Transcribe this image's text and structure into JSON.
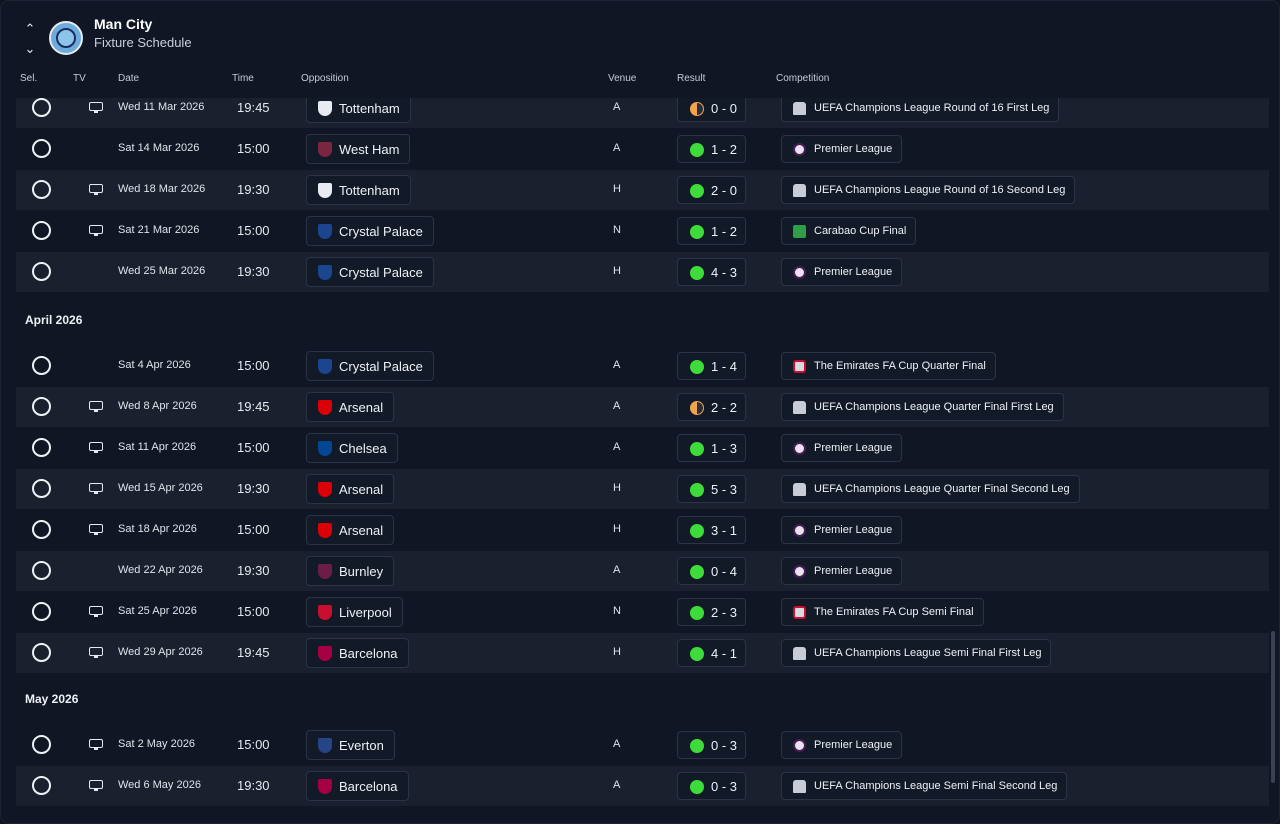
{
  "header": {
    "club": "Man City",
    "subtitle": "Fixture Schedule"
  },
  "columns": {
    "sel": "Sel.",
    "tv": "TV",
    "date": "Date",
    "time": "Time",
    "opposition": "Opposition",
    "venue": "Venue",
    "result": "Result",
    "competition": "Competition"
  },
  "months": [
    {
      "label": "April 2026"
    },
    {
      "label": "May 2026"
    }
  ],
  "colors": {
    "win": "#3ddc3a",
    "draw": "#f3a24e",
    "background": "#101623",
    "row_alt": "#1a202d"
  },
  "fixtures": [
    {
      "date": "Wed 11 Mar 2026",
      "time": "19:45",
      "opp": "Tottenham",
      "venue": "A",
      "score": "0 - 0",
      "result": "draw",
      "comp": "UEFA Champions League Round of 16  First Leg",
      "tv": true
    },
    {
      "date": "Sat 14 Mar 2026",
      "time": "15:00",
      "opp": "West Ham",
      "venue": "A",
      "score": "1 - 2",
      "result": "win",
      "comp": "Premier League",
      "tv": false
    },
    {
      "date": "Wed 18 Mar 2026",
      "time": "19:30",
      "opp": "Tottenham",
      "venue": "H",
      "score": "2 - 0",
      "result": "win",
      "comp": "UEFA Champions League Round of 16  Second Leg",
      "tv": true
    },
    {
      "date": "Sat 21 Mar 2026",
      "time": "15:00",
      "opp": "Crystal Palace",
      "venue": "N",
      "score": "1 - 2",
      "result": "win",
      "comp": "Carabao Cup Final",
      "tv": true
    },
    {
      "date": "Wed 25 Mar 2026",
      "time": "19:30",
      "opp": "Crystal Palace",
      "venue": "H",
      "score": "4 - 3",
      "result": "win",
      "comp": "Premier League",
      "tv": false
    },
    {
      "date": "Sat 4 Apr 2026",
      "time": "15:00",
      "opp": "Crystal Palace",
      "venue": "A",
      "score": "1 - 4",
      "result": "win",
      "comp": "The Emirates FA Cup Quarter Final",
      "tv": false
    },
    {
      "date": "Wed 8 Apr 2026",
      "time": "19:45",
      "opp": "Arsenal",
      "venue": "A",
      "score": "2 - 2",
      "result": "draw",
      "comp": "UEFA Champions League Quarter Final First Leg",
      "tv": true
    },
    {
      "date": "Sat 11 Apr 2026",
      "time": "15:00",
      "opp": "Chelsea",
      "venue": "A",
      "score": "1 - 3",
      "result": "win",
      "comp": "Premier League",
      "tv": true
    },
    {
      "date": "Wed 15 Apr 2026",
      "time": "19:30",
      "opp": "Arsenal",
      "venue": "H",
      "score": "5 - 3",
      "result": "win",
      "comp": "UEFA Champions League Quarter Final Second Leg",
      "tv": true
    },
    {
      "date": "Sat 18 Apr 2026",
      "time": "15:00",
      "opp": "Arsenal",
      "venue": "H",
      "score": "3 - 1",
      "result": "win",
      "comp": "Premier League",
      "tv": true
    },
    {
      "date": "Wed 22 Apr 2026",
      "time": "19:30",
      "opp": "Burnley",
      "venue": "A",
      "score": "0 - 4",
      "result": "win",
      "comp": "Premier League",
      "tv": false
    },
    {
      "date": "Sat 25 Apr 2026",
      "time": "15:00",
      "opp": "Liverpool",
      "venue": "N",
      "score": "2 - 3",
      "result": "win",
      "comp": "The Emirates FA Cup Semi Final",
      "tv": true
    },
    {
      "date": "Wed 29 Apr 2026",
      "time": "19:45",
      "opp": "Barcelona",
      "venue": "H",
      "score": "4 - 1",
      "result": "win",
      "comp": "UEFA Champions League Semi Final First Leg",
      "tv": true
    },
    {
      "date": "Sat 2 May 2026",
      "time": "15:00",
      "opp": "Everton",
      "venue": "A",
      "score": "0 - 3",
      "result": "win",
      "comp": "Premier League",
      "tv": true
    },
    {
      "date": "Wed 6 May 2026",
      "time": "19:30",
      "opp": "Barcelona",
      "venue": "A",
      "score": "0 - 3",
      "result": "win",
      "comp": "UEFA Champions League Semi Final Second Leg",
      "tv": true
    }
  ]
}
